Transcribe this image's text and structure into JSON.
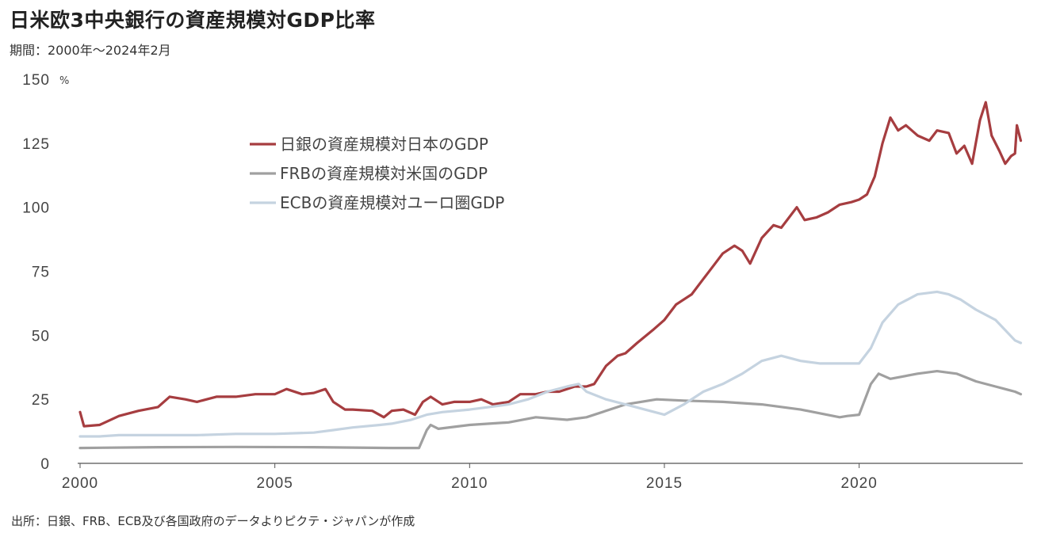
{
  "header": {
    "title": "日米欧3中央銀行の資産規模対GDP比率",
    "period": "期間：2000年～2024年2月"
  },
  "footer": {
    "source": "出所：日銀、FRB、ECB及び各国政府のデータよりピクテ・ジャパンが作成"
  },
  "chart_data": {
    "type": "line",
    "title": "日米欧3中央銀行の資産規模対GDP比率",
    "ylabel": "%",
    "xlabel": "",
    "ylim": [
      0,
      150
    ],
    "xlim": [
      2000,
      2024.2
    ],
    "y_ticks": [
      "0",
      "25",
      "50",
      "75",
      "100",
      "125",
      "150"
    ],
    "x_ticks": [
      "2000",
      "2005",
      "2010",
      "2015",
      "2020"
    ],
    "legend_position": "upper-left-center",
    "grid": false,
    "series": [
      {
        "name": "日銀の資産規模対日本のGDP",
        "color": "#a63d40",
        "points": [
          [
            2000.0,
            20
          ],
          [
            2000.1,
            14.5
          ],
          [
            2000.5,
            15
          ],
          [
            2001.0,
            18.5
          ],
          [
            2001.5,
            20.5
          ],
          [
            2002.0,
            22
          ],
          [
            2002.3,
            26
          ],
          [
            2002.7,
            25
          ],
          [
            2003.0,
            24
          ],
          [
            2003.5,
            26
          ],
          [
            2004.0,
            26
          ],
          [
            2004.5,
            27
          ],
          [
            2005.0,
            27
          ],
          [
            2005.3,
            29
          ],
          [
            2005.7,
            27
          ],
          [
            2006.0,
            27.5
          ],
          [
            2006.3,
            29
          ],
          [
            2006.5,
            24
          ],
          [
            2006.8,
            21
          ],
          [
            2007.0,
            21
          ],
          [
            2007.5,
            20.5
          ],
          [
            2007.8,
            18
          ],
          [
            2008.0,
            20.5
          ],
          [
            2008.3,
            21
          ],
          [
            2008.6,
            19
          ],
          [
            2008.8,
            24
          ],
          [
            2009.0,
            26
          ],
          [
            2009.3,
            23
          ],
          [
            2009.6,
            24
          ],
          [
            2010.0,
            24
          ],
          [
            2010.3,
            25
          ],
          [
            2010.6,
            23
          ],
          [
            2011.0,
            24
          ],
          [
            2011.3,
            27
          ],
          [
            2011.7,
            27
          ],
          [
            2012.0,
            28
          ],
          [
            2012.3,
            28
          ],
          [
            2012.7,
            30
          ],
          [
            2013.0,
            30
          ],
          [
            2013.2,
            31
          ],
          [
            2013.5,
            38
          ],
          [
            2013.8,
            42
          ],
          [
            2014.0,
            43
          ],
          [
            2014.3,
            47
          ],
          [
            2014.7,
            52
          ],
          [
            2015.0,
            56
          ],
          [
            2015.3,
            62
          ],
          [
            2015.7,
            66
          ],
          [
            2016.0,
            72
          ],
          [
            2016.3,
            78
          ],
          [
            2016.5,
            82
          ],
          [
            2016.8,
            85
          ],
          [
            2017.0,
            83
          ],
          [
            2017.2,
            78
          ],
          [
            2017.5,
            88
          ],
          [
            2017.8,
            93
          ],
          [
            2018.0,
            92
          ],
          [
            2018.2,
            96
          ],
          [
            2018.4,
            100
          ],
          [
            2018.6,
            95
          ],
          [
            2018.9,
            96
          ],
          [
            2019.2,
            98
          ],
          [
            2019.5,
            101
          ],
          [
            2019.8,
            102
          ],
          [
            2020.0,
            103
          ],
          [
            2020.2,
            105
          ],
          [
            2020.4,
            112
          ],
          [
            2020.6,
            125
          ],
          [
            2020.8,
            135
          ],
          [
            2021.0,
            130
          ],
          [
            2021.2,
            132
          ],
          [
            2021.5,
            128
          ],
          [
            2021.8,
            126
          ],
          [
            2022.0,
            130
          ],
          [
            2022.3,
            129
          ],
          [
            2022.5,
            121
          ],
          [
            2022.7,
            124
          ],
          [
            2022.9,
            117
          ],
          [
            2023.1,
            134
          ],
          [
            2023.25,
            141
          ],
          [
            2023.4,
            128
          ],
          [
            2023.6,
            122
          ],
          [
            2023.75,
            117
          ],
          [
            2023.9,
            120
          ],
          [
            2024.0,
            121
          ],
          [
            2024.05,
            132
          ],
          [
            2024.15,
            126
          ]
        ]
      },
      {
        "name": "FRBの資産規模対米国のGDP",
        "color": "#a0a0a0",
        "points": [
          [
            2000.0,
            6
          ],
          [
            2002.0,
            6.3
          ],
          [
            2004.0,
            6.4
          ],
          [
            2006.0,
            6.3
          ],
          [
            2008.0,
            6
          ],
          [
            2008.7,
            6
          ],
          [
            2008.9,
            13
          ],
          [
            2009.0,
            15
          ],
          [
            2009.2,
            13.5
          ],
          [
            2010.0,
            15
          ],
          [
            2011.0,
            16
          ],
          [
            2011.7,
            18
          ],
          [
            2012.5,
            17
          ],
          [
            2013.0,
            18
          ],
          [
            2014.0,
            23
          ],
          [
            2014.8,
            25
          ],
          [
            2015.5,
            24.5
          ],
          [
            2016.5,
            24
          ],
          [
            2017.5,
            23
          ],
          [
            2018.5,
            21
          ],
          [
            2019.5,
            18
          ],
          [
            2019.7,
            18.5
          ],
          [
            2020.0,
            19
          ],
          [
            2020.3,
            31
          ],
          [
            2020.5,
            35
          ],
          [
            2020.8,
            33
          ],
          [
            2021.5,
            35
          ],
          [
            2022.0,
            36
          ],
          [
            2022.5,
            35
          ],
          [
            2023.0,
            32
          ],
          [
            2023.5,
            30
          ],
          [
            2024.0,
            28
          ],
          [
            2024.15,
            27
          ]
        ]
      },
      {
        "name": "ECBの資産規模対ユーロ圏GDP",
        "color": "#c5d3e0",
        "points": [
          [
            2000.0,
            10.5
          ],
          [
            2000.5,
            10.5
          ],
          [
            2001.0,
            11
          ],
          [
            2002.0,
            11
          ],
          [
            2003.0,
            11
          ],
          [
            2004.0,
            11.5
          ],
          [
            2005.0,
            11.5
          ],
          [
            2006.0,
            12
          ],
          [
            2006.5,
            13
          ],
          [
            2007.0,
            14
          ],
          [
            2007.7,
            15
          ],
          [
            2008.0,
            15.5
          ],
          [
            2008.5,
            17
          ],
          [
            2008.9,
            19
          ],
          [
            2009.3,
            20
          ],
          [
            2010.0,
            21
          ],
          [
            2010.5,
            22
          ],
          [
            2011.0,
            23
          ],
          [
            2011.5,
            25
          ],
          [
            2012.0,
            28
          ],
          [
            2012.5,
            30
          ],
          [
            2012.8,
            31
          ],
          [
            2013.0,
            28
          ],
          [
            2013.5,
            25
          ],
          [
            2014.0,
            23
          ],
          [
            2014.5,
            21
          ],
          [
            2015.0,
            19
          ],
          [
            2015.5,
            23
          ],
          [
            2016.0,
            28
          ],
          [
            2016.5,
            31
          ],
          [
            2017.0,
            35
          ],
          [
            2017.5,
            40
          ],
          [
            2018.0,
            42
          ],
          [
            2018.5,
            40
          ],
          [
            2019.0,
            39
          ],
          [
            2019.5,
            39
          ],
          [
            2020.0,
            39
          ],
          [
            2020.3,
            45
          ],
          [
            2020.6,
            55
          ],
          [
            2021.0,
            62
          ],
          [
            2021.5,
            66
          ],
          [
            2022.0,
            67
          ],
          [
            2022.3,
            66
          ],
          [
            2022.6,
            64
          ],
          [
            2023.0,
            60
          ],
          [
            2023.5,
            56
          ],
          [
            2024.0,
            48
          ],
          [
            2024.15,
            47
          ]
        ]
      }
    ]
  }
}
